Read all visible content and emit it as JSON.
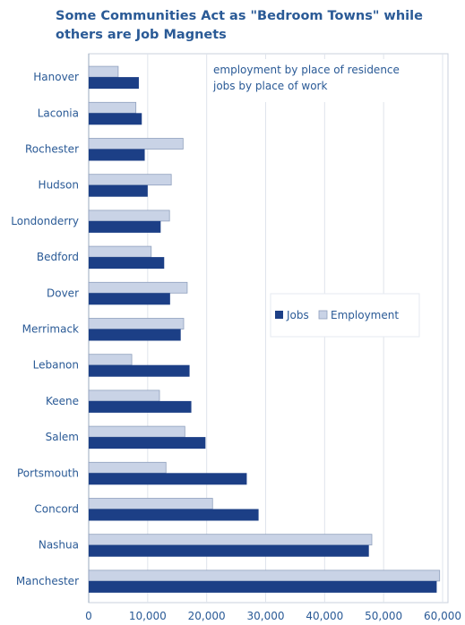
{
  "chart_data": {
    "type": "bar",
    "orientation": "horizontal",
    "title": "Some Communities Act as \"Bedroom Towns\" while others are Job Magnets",
    "title_lines": [
      "Some Communities Act as \"Bedroom Towns\" while",
      "others are Job Magnets"
    ],
    "categories": [
      "Hanover",
      "Laconia",
      "Rochester",
      "Hudson",
      "Londonderry",
      "Bedford",
      "Dover",
      "Merrimack",
      "Lebanon",
      "Keene",
      "Salem",
      "Portsmouth",
      "Concord",
      "Nashua",
      "Manchester"
    ],
    "series": [
      {
        "name": "Employment",
        "color": "#c9d3e6",
        "values": [
          5000,
          8000,
          16000,
          14000,
          13700,
          10600,
          16700,
          16100,
          7300,
          12000,
          16300,
          13100,
          21000,
          48000,
          59500
        ]
      },
      {
        "name": "Jobs",
        "color": "#1c3f86",
        "values": [
          8500,
          9000,
          9500,
          10000,
          12200,
          12800,
          13800,
          15600,
          17100,
          17400,
          19800,
          26800,
          28800,
          47500,
          59000
        ]
      }
    ],
    "annotations": [
      "employment by place of residence",
      "jobs by place of work"
    ],
    "xlim": [
      0,
      60000
    ],
    "xticks": [
      "0",
      "10,000",
      "20,000",
      "30,000",
      "40,000",
      "50,000",
      "60,000"
    ],
    "xtick_values": [
      0,
      10000,
      20000,
      30000,
      40000,
      50000,
      60000
    ],
    "grid": true,
    "legend": {
      "placement": "right",
      "entries": [
        "Jobs",
        "Employment"
      ]
    }
  }
}
